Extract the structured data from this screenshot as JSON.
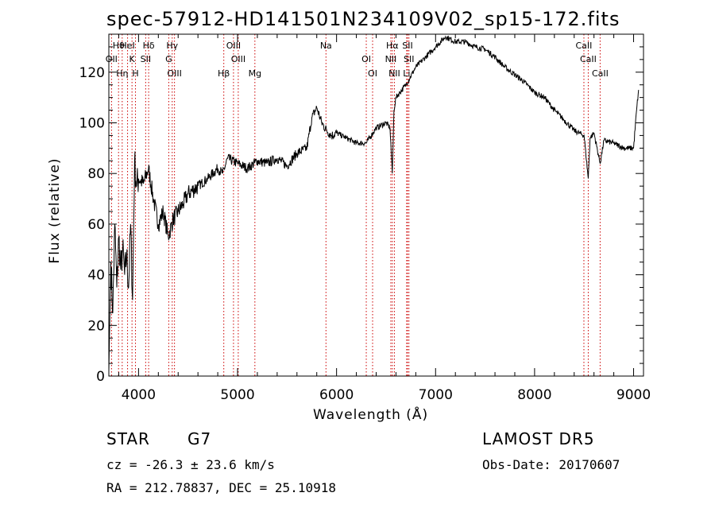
{
  "chart_data": {
    "type": "line",
    "title": "spec-57912-HD141501N234109V02_sp15-172.fits",
    "xlabel": "Wavelength (Å)",
    "ylabel": "Flux (relative)",
    "xlim": [
      3700,
      9100
    ],
    "ylim": [
      0,
      135
    ],
    "xticks": [
      4000,
      5000,
      6000,
      7000,
      8000,
      9000
    ],
    "yticks": [
      0,
      20,
      40,
      60,
      80,
      100,
      120
    ],
    "line_color": "#000000",
    "marker_color": "#cc0000",
    "spectrum": {
      "x": [
        3700,
        3720,
        3740,
        3760,
        3780,
        3800,
        3820,
        3840,
        3860,
        3880,
        3900,
        3920,
        3940,
        3960,
        3980,
        4000,
        4050,
        4100,
        4150,
        4200,
        4250,
        4300,
        4350,
        4400,
        4450,
        4500,
        4600,
        4700,
        4800,
        4850,
        4900,
        5000,
        5100,
        5200,
        5300,
        5400,
        5500,
        5600,
        5700,
        5750,
        5800,
        5850,
        5900,
        5950,
        6000,
        6100,
        6200,
        6300,
        6400,
        6500,
        6540,
        6563,
        6580,
        6600,
        6700,
        6800,
        6900,
        7000,
        7100,
        7200,
        7300,
        7400,
        7500,
        7600,
        7700,
        7800,
        7900,
        8000,
        8100,
        8200,
        8300,
        8400,
        8450,
        8500,
        8542,
        8560,
        8600,
        8662,
        8700,
        8800,
        8900,
        9000,
        9030,
        9050
      ],
      "y": [
        2,
        45,
        25,
        60,
        35,
        55,
        42,
        50,
        40,
        48,
        35,
        60,
        30,
        85,
        75,
        78,
        76,
        82,
        70,
        60,
        65,
        55,
        62,
        65,
        68,
        72,
        75,
        78,
        82,
        80,
        86,
        84,
        82,
        85,
        84,
        86,
        83,
        88,
        90,
        102,
        106,
        100,
        97,
        95,
        96,
        94,
        92,
        92,
        98,
        100,
        98,
        80,
        105,
        110,
        115,
        122,
        126,
        130,
        134,
        132,
        132,
        130,
        129,
        126,
        122,
        119,
        116,
        112,
        110,
        105,
        101,
        97,
        96,
        95,
        78,
        94,
        96,
        84,
        93,
        92,
        90,
        90,
        105,
        113
      ]
    },
    "line_markers": [
      {
        "label": "Hθ",
        "x": 3798
      },
      {
        "label": "OII",
        "x": 3727
      },
      {
        "label": "Hη",
        "x": 3835
      },
      {
        "label": "HeI",
        "x": 3889
      },
      {
        "label": "K",
        "x": 3934
      },
      {
        "label": "H",
        "x": 3969
      },
      {
        "label": "Hδ",
        "x": 4102
      },
      {
        "label": "SII",
        "x": 4072
      },
      {
        "label": "OIII",
        "x": 4363
      },
      {
        "label": "Hγ",
        "x": 4340
      },
      {
        "label": "G",
        "x": 4305
      },
      {
        "label": "Hβ",
        "x": 4861
      },
      {
        "label": "OIII",
        "x": 4959
      },
      {
        "label": "OIII",
        "x": 5007
      },
      {
        "label": "Mg",
        "x": 5175
      },
      {
        "label": "Na",
        "x": 5893
      },
      {
        "label": "OI",
        "x": 6300
      },
      {
        "label": "OI",
        "x": 6364
      },
      {
        "label": "Hα",
        "x": 6563
      },
      {
        "label": "NII",
        "x": 6548
      },
      {
        "label": "NII",
        "x": 6584
      },
      {
        "label": "SII",
        "x": 6717
      },
      {
        "label": "SII",
        "x": 6731
      },
      {
        "label": "Li",
        "x": 6708
      },
      {
        "label": "CaII",
        "x": 8498
      },
      {
        "label": "CaII",
        "x": 8542
      },
      {
        "label": "CaII",
        "x": 8662
      }
    ]
  },
  "info": {
    "object_type": "STAR",
    "subclass": "G7",
    "survey": "LAMOST DR5",
    "velocity": "cz = -26.3 ± 23.6 km/s",
    "obs_date": "Obs-Date: 20170607",
    "coords": "RA = 212.78837, DEC =  25.10918"
  }
}
